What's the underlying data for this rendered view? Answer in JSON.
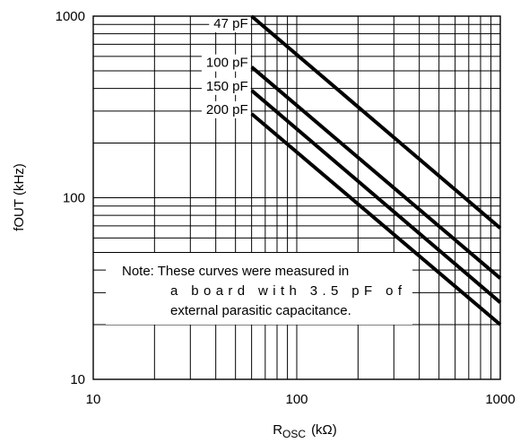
{
  "chart_data": {
    "type": "line",
    "x_scale": "log",
    "y_scale": "log",
    "xlim": [
      10,
      1000
    ],
    "ylim": [
      10,
      1000
    ],
    "grid": true,
    "xlabel": {
      "base": "R",
      "subscript": "OSC",
      "unit": "(kΩ)"
    },
    "ylabel": "fOUT  (kHz)",
    "x_ticks": [
      {
        "value": 10,
        "label": "10"
      },
      {
        "value": 100,
        "label": "100"
      },
      {
        "value": 1000,
        "label": "1000"
      }
    ],
    "y_ticks": [
      {
        "value": 10,
        "label": "10"
      },
      {
        "value": 100,
        "label": "100"
      },
      {
        "value": 1000,
        "label": "1000"
      }
    ],
    "series": [
      {
        "name": "47 pF",
        "x": [
          60,
          1000
        ],
        "y": [
          1000,
          68
        ]
      },
      {
        "name": "100 pF",
        "x": [
          60,
          1000
        ],
        "y": [
          525,
          36
        ]
      },
      {
        "name": "150 pF",
        "x": [
          60,
          1000
        ],
        "y": [
          390,
          26.5
        ]
      },
      {
        "name": "200 pF",
        "x": [
          60,
          1000
        ],
        "y": [
          290,
          20
        ]
      }
    ],
    "note": [
      {
        "text": "Note:  These curves were measured in"
      },
      {
        "text": "a  board  with  3.5  pF  of",
        "justify": true
      },
      {
        "text": "external parasitic capacitance."
      }
    ]
  }
}
